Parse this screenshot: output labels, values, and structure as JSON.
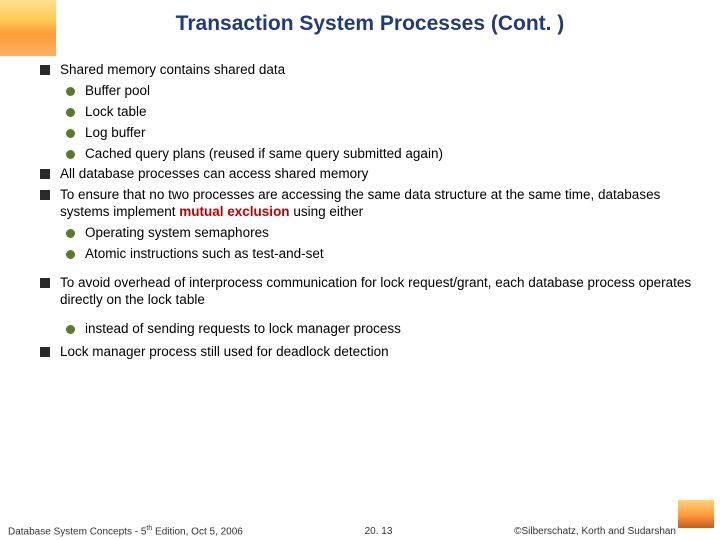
{
  "title": "Transaction System Processes (Cont. )",
  "bullets": {
    "l1_1": "Shared memory contains shared data",
    "l2_1": "Buffer pool",
    "l2_2": "Lock table",
    "l2_3": "Log buffer",
    "l2_4": "Cached query plans (reused if same query submitted again)",
    "l1_2": "All database processes can access shared memory",
    "l1_3a": "To ensure that no two processes are accessing the same data structure at the same time, databases systems implement ",
    "l1_3b": "mutual exclusion",
    "l1_3c": " using either",
    "l2_5": "Operating system semaphores",
    "l2_6": "Atomic instructions such as test-and-set",
    "l1_4": "To avoid overhead of interprocess communication for lock request/grant, each database process operates directly on the lock table",
    "l2_7": "instead of sending requests to lock manager process",
    "l1_5": "Lock manager process still used for deadlock detection"
  },
  "footer": {
    "left_a": "Database System Concepts - 5",
    "left_b": " Edition, Oct 5, 2006",
    "center": "20. 13",
    "right": "©Silberschatz, Korth and Sudarshan"
  },
  "colors": {
    "title": "#1f3b7a",
    "square_bullet": "#2a2a2a",
    "round_bullet": "#5a7a2a",
    "emphasis": "#c00000"
  }
}
